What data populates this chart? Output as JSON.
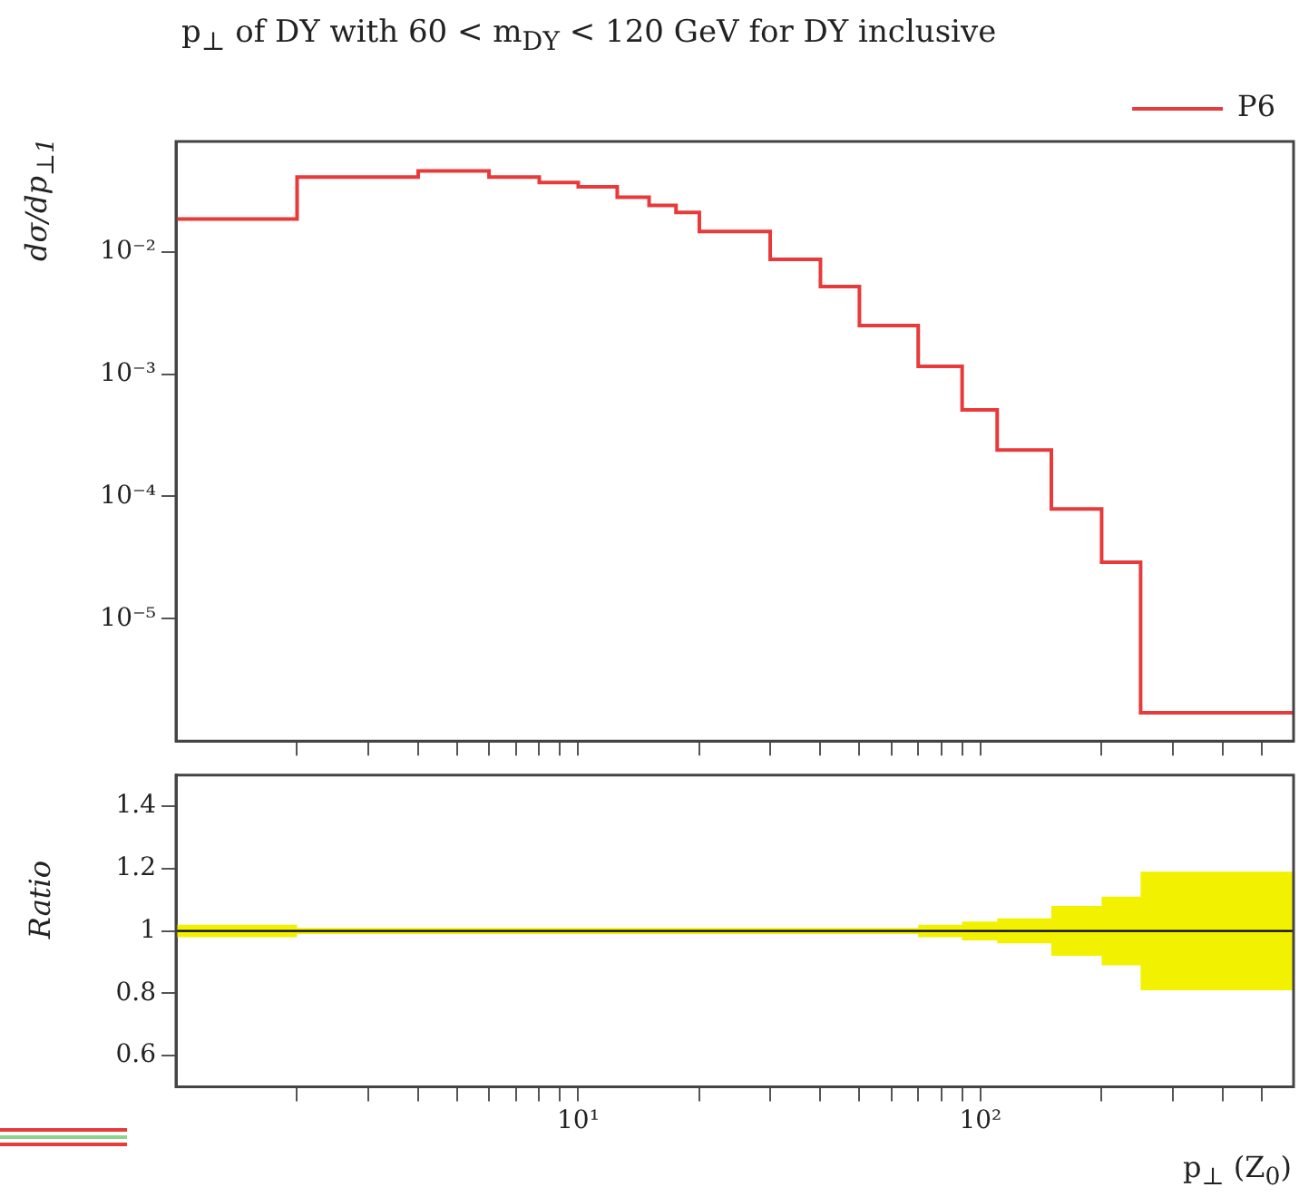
{
  "chart_data": [
    {
      "type": "histogram",
      "title": "p$_{⊥}$ of DY with 60 < m$_{DY}$ < 120 GeV for DY inclusive",
      "ylabel": "dσ/dp$_{⊥1}$",
      "bins": [
        1,
        2,
        4,
        6,
        8,
        10,
        12.5,
        15,
        17.5,
        20,
        30,
        40,
        50,
        70,
        90,
        110,
        150,
        200,
        250,
        600
      ],
      "series": [
        {
          "name": "P6",
          "color": "#e83a3a",
          "values": [
            0.0186,
            0.041,
            0.046,
            0.041,
            0.037,
            0.034,
            0.028,
            0.024,
            0.021,
            0.0147,
            0.0087,
            0.0052,
            0.0025,
            0.00116,
            0.00051,
            0.00024,
            7.9e-05,
            2.9e-05,
            1.7e-06
          ]
        }
      ],
      "log": "xy",
      "xlim": [
        1,
        600
      ],
      "ylim": [
        1e-06,
        0.08
      ],
      "xticks": [
        {
          "value": 2,
          "label": null
        },
        {
          "value": 3,
          "label": null
        },
        {
          "value": 4,
          "label": null
        },
        {
          "value": 5,
          "label": null
        },
        {
          "value": 6,
          "label": null
        },
        {
          "value": 7,
          "label": null
        },
        {
          "value": 8,
          "label": null
        },
        {
          "value": 9,
          "label": null
        },
        {
          "value": 10,
          "label": null
        },
        {
          "value": 20,
          "label": null
        },
        {
          "value": 30,
          "label": null
        },
        {
          "value": 40,
          "label": null
        },
        {
          "value": 50,
          "label": null
        },
        {
          "value": 60,
          "label": null
        },
        {
          "value": 70,
          "label": null
        },
        {
          "value": 80,
          "label": null
        },
        {
          "value": 90,
          "label": null
        },
        {
          "value": 100,
          "label": null
        },
        {
          "value": 200,
          "label": null
        },
        {
          "value": 300,
          "label": null
        },
        {
          "value": 400,
          "label": null
        },
        {
          "value": 500,
          "label": null
        }
      ],
      "yticks": [
        {
          "value": 0.01,
          "label": "10⁻²"
        },
        {
          "value": 0.001,
          "label": "10⁻³"
        },
        {
          "value": 0.0001,
          "label": "10⁻⁴"
        },
        {
          "value": 1e-05,
          "label": "10⁻⁵"
        }
      ],
      "tick_labels": "y",
      "legend": "top right",
      "grid": false
    },
    {
      "type": "step",
      "ylabel": "Ratio",
      "xlabel": "p$_{⊥}$ (Z$_{0}$)",
      "x": [
        1,
        2,
        4,
        6,
        8,
        10,
        12.5,
        15,
        17.5,
        20,
        30,
        40,
        50,
        70,
        90,
        110,
        150,
        200,
        250,
        600
      ],
      "series": [
        {
          "color": "#000000",
          "values": [
            1,
            1,
            1,
            1,
            1,
            1,
            1,
            1,
            1,
            1,
            1,
            1,
            1,
            1,
            1,
            1,
            1,
            1,
            1,
            1
          ],
          "lower": [
            0.98,
            0.99,
            0.99,
            0.99,
            0.99,
            0.99,
            0.99,
            0.99,
            0.99,
            0.99,
            0.99,
            0.99,
            0.99,
            0.98,
            0.97,
            0.96,
            0.92,
            0.89,
            0.81,
            0.81
          ],
          "upper": [
            1.02,
            1.01,
            1.01,
            1.01,
            1.01,
            1.01,
            1.01,
            1.01,
            1.01,
            1.01,
            1.01,
            1.01,
            1.01,
            1.02,
            1.03,
            1.04,
            1.08,
            1.11,
            1.19,
            1.19
          ]
        }
      ],
      "log": "x",
      "xlim": [
        1,
        600
      ],
      "ylim": [
        0.5,
        1.5
      ],
      "xticks": [
        {
          "value": 2,
          "label": null
        },
        {
          "value": 3,
          "label": null
        },
        {
          "value": 4,
          "label": null
        },
        {
          "value": 5,
          "label": null
        },
        {
          "value": 6,
          "label": null
        },
        {
          "value": 7,
          "label": null
        },
        {
          "value": 8,
          "label": null
        },
        {
          "value": 9,
          "label": null
        },
        {
          "value": 10,
          "label": "10¹"
        },
        {
          "value": 20,
          "label": null
        },
        {
          "value": 30,
          "label": null
        },
        {
          "value": 40,
          "label": null
        },
        {
          "value": 50,
          "label": null
        },
        {
          "value": 60,
          "label": null
        },
        {
          "value": 70,
          "label": null
        },
        {
          "value": 80,
          "label": null
        },
        {
          "value": 90,
          "label": null
        },
        {
          "value": 100,
          "label": "10²"
        },
        {
          "value": 200,
          "label": null
        },
        {
          "value": 300,
          "label": null
        },
        {
          "value": 400,
          "label": null
        },
        {
          "value": 500,
          "label": null
        }
      ],
      "yticks": [
        0.6,
        0.8,
        1,
        1.2,
        1.4
      ],
      "legend": false,
      "grid": false
    }
  ]
}
